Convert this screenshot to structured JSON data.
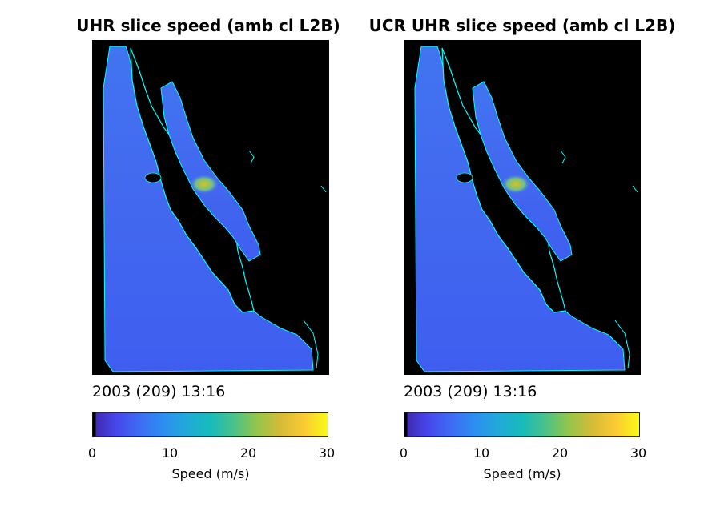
{
  "colors": {
    "background": "#ffffff",
    "land": "#000000",
    "coastline": "#00ffff",
    "ocean_base": "#3f5ef0",
    "hotspot": "#d8c31a"
  },
  "panels": [
    {
      "title": "UHR slice speed (amb cl L2B)",
      "timestamp": "2003 (209) 13:16",
      "colorbar": {
        "label": "Speed (m/s)",
        "ticks": [
          "0",
          "10",
          "20",
          "30"
        ]
      }
    },
    {
      "title": "UCR UHR slice speed (amb cl L2B)",
      "timestamp": "2003 (209) 13:16",
      "colorbar": {
        "label": "Speed (m/s)",
        "ticks": [
          "0",
          "10",
          "20",
          "30"
        ]
      }
    }
  ],
  "chart_data": [
    {
      "type": "heatmap",
      "title": "UHR slice speed (amb cl L2B)",
      "subtitle": "2003 (209) 13:16",
      "colormap": "parula",
      "colorbar_label": "Speed (m/s)",
      "clim": [
        0,
        30
      ],
      "colorbar_ticks": [
        0,
        10,
        20,
        30
      ],
      "typical_ocean_speed_range": [
        6,
        10
      ],
      "max_speed_estimate": 25
    },
    {
      "type": "heatmap",
      "title": "UCR UHR slice speed (amb cl L2B)",
      "subtitle": "2003 (209) 13:16",
      "colormap": "parula",
      "colorbar_label": "Speed (m/s)",
      "clim": [
        0,
        30
      ],
      "colorbar_ticks": [
        0,
        10,
        20,
        30
      ],
      "typical_ocean_speed_range": [
        6,
        10
      ],
      "max_speed_estimate": 25
    }
  ]
}
